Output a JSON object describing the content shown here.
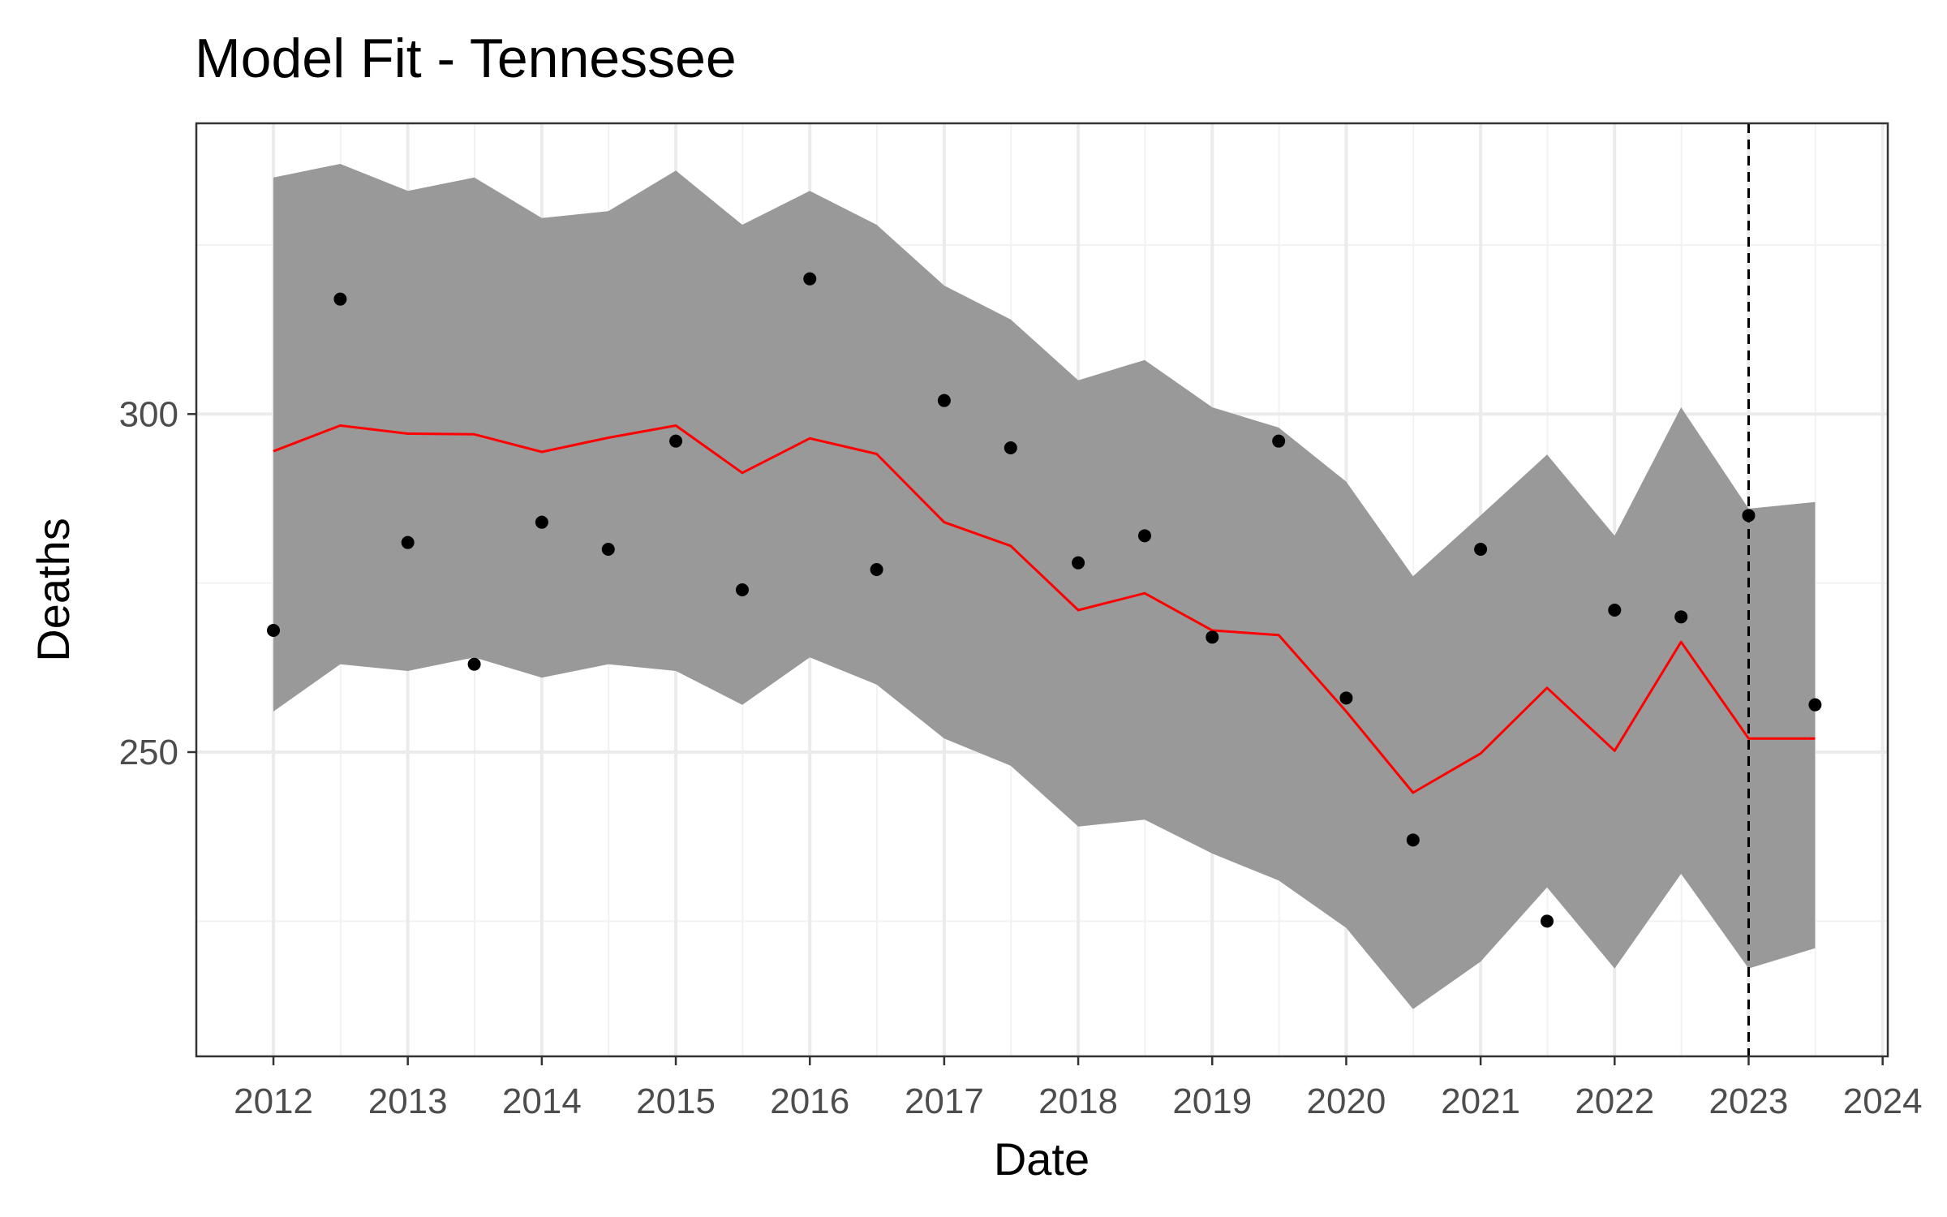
{
  "chart_data": {
    "type": "line",
    "title": "Model Fit - Tennessee",
    "xlabel": "Date",
    "ylabel": "Deaths",
    "x_ticks": [
      "2012",
      "2013",
      "2014",
      "2015",
      "2016",
      "2017",
      "2018",
      "2019",
      "2020",
      "2021",
      "2022",
      "2023",
      "2024"
    ],
    "y_ticks": [
      "250",
      "300"
    ],
    "xlim": [
      "2011-06-05",
      "2024-01-15"
    ],
    "ylim": [
      205,
      343
    ],
    "grid": true,
    "vline_date": "2023-01-01",
    "x": [
      "2012-01-01",
      "2012-07-01",
      "2013-01-01",
      "2013-07-01",
      "2014-01-01",
      "2014-07-01",
      "2015-01-01",
      "2015-07-01",
      "2016-01-01",
      "2016-07-01",
      "2017-01-01",
      "2017-07-01",
      "2018-01-01",
      "2018-07-01",
      "2019-01-01",
      "2019-07-01",
      "2020-01-01",
      "2020-07-01",
      "2021-01-01",
      "2021-07-01",
      "2022-01-01",
      "2022-07-01",
      "2023-01-01",
      "2023-07-01"
    ],
    "series": [
      {
        "role": "observed",
        "values": [
          268,
          317,
          281,
          263,
          284,
          280,
          296,
          274,
          320,
          277,
          302,
          295,
          278,
          282,
          267,
          296,
          258,
          237,
          280,
          225,
          271,
          270,
          285,
          257
        ]
      },
      {
        "role": "fitted",
        "values": [
          294.5,
          298.3,
          297.1,
          297.0,
          294.4,
          296.5,
          298.3,
          291.3,
          296.4,
          294.1,
          284.0,
          280.5,
          271.0,
          273.5,
          268.0,
          267.3,
          256.0,
          244.0,
          249.8,
          259.5,
          250.2,
          266.3,
          252.0,
          252.0
        ]
      },
      {
        "role": "interval",
        "upper": [
          335,
          337,
          333,
          335,
          329,
          330,
          336,
          328,
          333,
          328,
          319,
          314,
          305,
          308,
          301,
          298,
          290,
          276,
          285,
          294,
          282,
          301,
          286,
          287
        ],
        "lower": [
          256,
          263,
          262,
          264,
          261,
          263,
          262,
          257,
          264,
          260,
          252,
          248,
          239,
          240,
          235,
          231,
          224,
          212,
          219,
          230,
          218,
          232,
          218,
          221
        ]
      }
    ],
    "colors": {
      "band": "#999999",
      "line": "#ff0000",
      "point": "#000000",
      "grid_major": "#ebebeb",
      "grid_minor": "#f2f2f2",
      "panel_border": "#333333",
      "vline": "#000000"
    }
  }
}
